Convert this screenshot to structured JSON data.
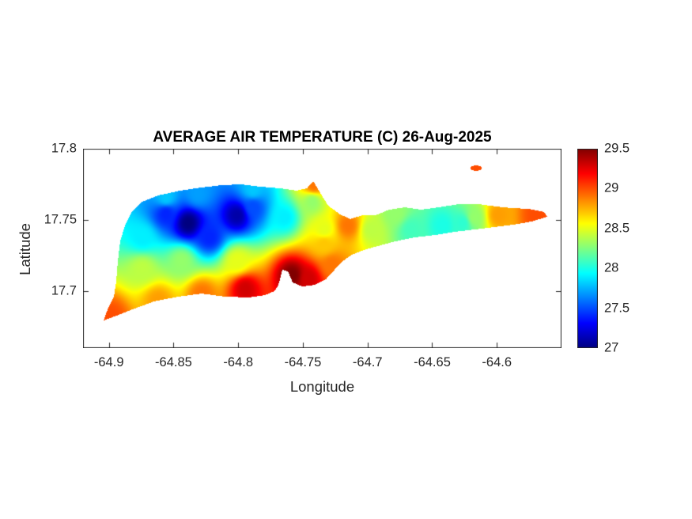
{
  "figure": {
    "background": "#ffffff",
    "title_color": "#000000",
    "axis_color": "#262626"
  },
  "chart_data": {
    "type": "heatmap",
    "title": "AVERAGE AIR TEMPERATURE (C) 26-Aug-2025",
    "xlabel": "Longitude",
    "ylabel": "Latitude",
    "xlim": [
      -64.92,
      -64.55
    ],
    "ylim": [
      17.66,
      17.8
    ],
    "xticks": [
      -64.9,
      -64.85,
      -64.8,
      -64.75,
      -64.7,
      -64.65,
      -64.6
    ],
    "yticks": [
      17.7,
      17.75,
      17.8
    ],
    "grid": false,
    "colormap": "jet",
    "colormap_stops": [
      "#00008f",
      "#0000ff",
      "#00ffff",
      "#80ff80",
      "#ffff00",
      "#ff0000",
      "#8f0000"
    ],
    "colorbar": {
      "min": 27,
      "max": 29.5,
      "ticks": [
        27,
        27.5,
        28,
        28.5,
        29,
        29.5
      ],
      "position": "right"
    },
    "samples_schema": [
      "longitude",
      "latitude",
      "temperature_c"
    ],
    "samples": [
      [
        -64.8387,
        17.7478,
        27.0
      ],
      [
        -64.8008,
        17.7533,
        27.1
      ],
      [
        -64.8222,
        17.7378,
        27.4
      ],
      [
        -64.8558,
        17.7544,
        27.4
      ],
      [
        -64.7884,
        17.7589,
        27.5
      ],
      [
        -64.8741,
        17.7378,
        27.9
      ],
      [
        -64.764,
        17.7517,
        27.9
      ],
      [
        -64.7427,
        17.7628,
        28.3
      ],
      [
        -64.7335,
        17.7433,
        28.5
      ],
      [
        -64.8008,
        17.7211,
        28.5
      ],
      [
        -64.8436,
        17.7211,
        28.3
      ],
      [
        -64.8741,
        17.7156,
        28.4
      ],
      [
        -64.7946,
        17.7017,
        29.3
      ],
      [
        -64.758,
        17.7111,
        29.5
      ],
      [
        -64.7457,
        17.7089,
        29.3
      ],
      [
        -64.8282,
        17.6978,
        28.9
      ],
      [
        -64.8618,
        17.6933,
        28.8
      ],
      [
        -64.8985,
        17.6822,
        29.0
      ],
      [
        -64.7274,
        17.7183,
        28.9
      ],
      [
        -64.7151,
        17.7461,
        28.9
      ],
      [
        -64.6968,
        17.7433,
        28.4
      ],
      [
        -64.6662,
        17.7433,
        28.1
      ],
      [
        -64.6417,
        17.7461,
        28.0
      ],
      [
        -64.6264,
        17.7478,
        28.05
      ],
      [
        -64.6173,
        17.7517,
        28.3
      ],
      [
        -64.599,
        17.7533,
        28.8
      ],
      [
        -64.5684,
        17.7533,
        29.0
      ],
      [
        -64.6784,
        17.7544,
        28.3
      ],
      [
        -64.8314,
        17.7683,
        27.7
      ],
      [
        -64.7886,
        17.7711,
        27.8
      ],
      [
        -64.8558,
        17.7656,
        27.8
      ],
      [
        -64.7414,
        17.7745,
        28.9
      ],
      [
        -64.7335,
        17.7328,
        28.7
      ],
      [
        -64.616,
        17.7864,
        29.0
      ]
    ],
    "island_outline": [
      [
        -64.9041,
        17.6794
      ],
      [
        -64.8925,
        17.6833
      ],
      [
        -64.8833,
        17.6867
      ],
      [
        -64.865,
        17.6928
      ],
      [
        -64.8466,
        17.6961
      ],
      [
        -64.8283,
        17.6983
      ],
      [
        -64.8099,
        17.6961
      ],
      [
        -64.7916,
        17.6956
      ],
      [
        -64.7793,
        17.6972
      ],
      [
        -64.772,
        17.7
      ],
      [
        -64.7689,
        17.7044
      ],
      [
        -64.7659,
        17.715
      ],
      [
        -64.7616,
        17.7139
      ],
      [
        -64.7579,
        17.7061
      ],
      [
        -64.7506,
        17.7033
      ],
      [
        -64.7408,
        17.7044
      ],
      [
        -64.7322,
        17.7083
      ],
      [
        -64.7261,
        17.7144
      ],
      [
        -64.72,
        17.7206
      ],
      [
        -64.7121,
        17.7256
      ],
      [
        -64.7029,
        17.7289
      ],
      [
        -64.6919,
        17.7317
      ],
      [
        -64.6784,
        17.735
      ],
      [
        -64.6631,
        17.7378
      ],
      [
        -64.6478,
        17.7394
      ],
      [
        -64.6325,
        17.7417
      ],
      [
        -64.6173,
        17.7433
      ],
      [
        -64.602,
        17.745
      ],
      [
        -64.5867,
        17.7467
      ],
      [
        -64.5732,
        17.7489
      ],
      [
        -64.561,
        17.7522
      ],
      [
        -64.5634,
        17.7556
      ],
      [
        -64.5757,
        17.7578
      ],
      [
        -64.5879,
        17.7583
      ],
      [
        -64.6001,
        17.7594
      ],
      [
        -64.6142,
        17.7611
      ],
      [
        -64.6295,
        17.7611
      ],
      [
        -64.6448,
        17.7589
      ],
      [
        -64.6588,
        17.7572
      ],
      [
        -64.6711,
        17.7589
      ],
      [
        -64.6833,
        17.7572
      ],
      [
        -64.6937,
        17.7533
      ],
      [
        -64.7041,
        17.7533
      ],
      [
        -64.7133,
        17.7506
      ],
      [
        -64.7212,
        17.7539
      ],
      [
        -64.7304,
        17.76
      ],
      [
        -64.7365,
        17.7689
      ],
      [
        -64.742,
        17.7772
      ],
      [
        -64.7469,
        17.7722
      ],
      [
        -64.7549,
        17.7706
      ],
      [
        -64.7671,
        17.7722
      ],
      [
        -64.7824,
        17.7733
      ],
      [
        -64.7977,
        17.775
      ],
      [
        -64.813,
        17.7744
      ],
      [
        -64.8283,
        17.7728
      ],
      [
        -64.8448,
        17.7706
      ],
      [
        -64.8619,
        17.7672
      ],
      [
        -64.8741,
        17.7628
      ],
      [
        -64.8821,
        17.7561
      ],
      [
        -64.8876,
        17.7461
      ],
      [
        -64.8913,
        17.735
      ],
      [
        -64.8931,
        17.7211
      ],
      [
        -64.8943,
        17.7072
      ],
      [
        -64.8961,
        17.6961
      ],
      [
        -64.901,
        17.6872
      ]
    ],
    "islet": {
      "center": [
        -64.616,
        17.7864
      ],
      "rx": 0.0045,
      "ry": 0.0018
    }
  }
}
